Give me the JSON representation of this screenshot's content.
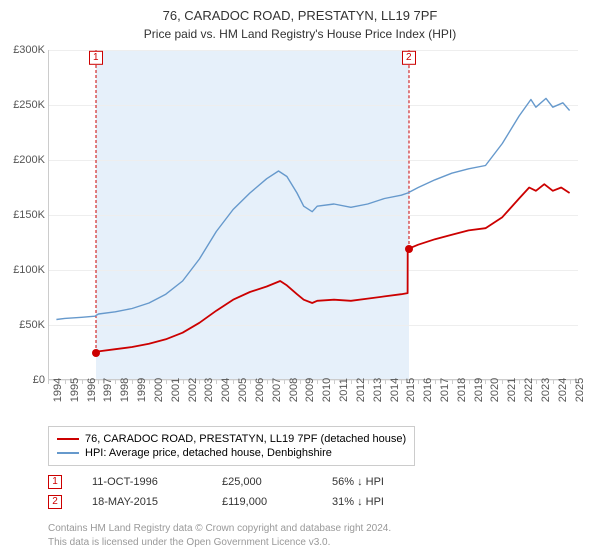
{
  "title": "76, CARADOC ROAD, PRESTATYN, LL19 7PF",
  "subtitle": "Price paid vs. HM Land Registry's House Price Index (HPI)",
  "chart": {
    "type": "line",
    "background_color": "#ffffff",
    "plot_band_color": "#e6f0fa",
    "grid_color": "#eeeeee",
    "axis_color": "#cccccc",
    "x_min": 1994,
    "x_max": 2025.5,
    "y_min": 0,
    "y_max": 300000,
    "y_ticks": [
      0,
      50000,
      100000,
      150000,
      200000,
      250000,
      300000
    ],
    "y_tick_labels": [
      "£0",
      "£50K",
      "£100K",
      "£150K",
      "£200K",
      "£250K",
      "£300K"
    ],
    "x_ticks": [
      1994,
      1995,
      1996,
      1997,
      1998,
      1999,
      2000,
      2001,
      2002,
      2003,
      2004,
      2005,
      2006,
      2007,
      2008,
      2009,
      2010,
      2011,
      2012,
      2013,
      2014,
      2015,
      2016,
      2017,
      2018,
      2019,
      2020,
      2021,
      2022,
      2023,
      2024,
      2025
    ],
    "plot_band": {
      "from": 1996.78,
      "to": 2015.38
    },
    "series": [
      {
        "name": "property",
        "label": "76, CARADOC ROAD, PRESTATYN, LL19 7PF (detached house)",
        "color": "#cc0000",
        "line_width": 1.8,
        "data": [
          [
            1996.78,
            25000
          ],
          [
            1997,
            26000
          ],
          [
            1998,
            28000
          ],
          [
            1999,
            30000
          ],
          [
            2000,
            33000
          ],
          [
            2001,
            37000
          ],
          [
            2002,
            43000
          ],
          [
            2003,
            52000
          ],
          [
            2004,
            63000
          ],
          [
            2005,
            73000
          ],
          [
            2006,
            80000
          ],
          [
            2007,
            85000
          ],
          [
            2007.8,
            90000
          ],
          [
            2008.2,
            86000
          ],
          [
            2008.8,
            78000
          ],
          [
            2009.2,
            73000
          ],
          [
            2009.7,
            70000
          ],
          [
            2010,
            72000
          ],
          [
            2011,
            73000
          ],
          [
            2012,
            72000
          ],
          [
            2013,
            74000
          ],
          [
            2014,
            76000
          ],
          [
            2015,
            78000
          ],
          [
            2015.37,
            79000
          ],
          [
            2015.38,
            119000
          ],
          [
            2016,
            123000
          ],
          [
            2017,
            128000
          ],
          [
            2018,
            132000
          ],
          [
            2019,
            136000
          ],
          [
            2020,
            138000
          ],
          [
            2021,
            148000
          ],
          [
            2022,
            165000
          ],
          [
            2022.6,
            175000
          ],
          [
            2023,
            172000
          ],
          [
            2023.5,
            178000
          ],
          [
            2024,
            172000
          ],
          [
            2024.5,
            175000
          ],
          [
            2025,
            170000
          ]
        ]
      },
      {
        "name": "hpi",
        "label": "HPI: Average price, detached house, Denbighshire",
        "color": "#6699cc",
        "line_width": 1.4,
        "data": [
          [
            1994.5,
            55000
          ],
          [
            1995,
            56000
          ],
          [
            1996,
            57000
          ],
          [
            1996.78,
            58000
          ],
          [
            1997,
            60000
          ],
          [
            1998,
            62000
          ],
          [
            1999,
            65000
          ],
          [
            2000,
            70000
          ],
          [
            2001,
            78000
          ],
          [
            2002,
            90000
          ],
          [
            2003,
            110000
          ],
          [
            2004,
            135000
          ],
          [
            2005,
            155000
          ],
          [
            2006,
            170000
          ],
          [
            2007,
            183000
          ],
          [
            2007.7,
            190000
          ],
          [
            2008.2,
            185000
          ],
          [
            2008.8,
            170000
          ],
          [
            2009.2,
            158000
          ],
          [
            2009.7,
            153000
          ],
          [
            2010,
            158000
          ],
          [
            2011,
            160000
          ],
          [
            2012,
            157000
          ],
          [
            2013,
            160000
          ],
          [
            2014,
            165000
          ],
          [
            2015,
            168000
          ],
          [
            2015.38,
            170000
          ],
          [
            2016,
            175000
          ],
          [
            2017,
            182000
          ],
          [
            2018,
            188000
          ],
          [
            2019,
            192000
          ],
          [
            2020,
            195000
          ],
          [
            2021,
            215000
          ],
          [
            2022,
            240000
          ],
          [
            2022.7,
            255000
          ],
          [
            2023,
            248000
          ],
          [
            2023.6,
            256000
          ],
          [
            2024,
            248000
          ],
          [
            2024.6,
            252000
          ],
          [
            2025,
            245000
          ]
        ]
      }
    ],
    "markers": [
      {
        "n": "1",
        "x": 1996.78,
        "y": 25000,
        "color": "#cc0000"
      },
      {
        "n": "2",
        "x": 2015.38,
        "y": 119000,
        "color": "#cc0000"
      }
    ]
  },
  "legend": {
    "items": [
      {
        "color": "#cc0000",
        "label": "76, CARADOC ROAD, PRESTATYN, LL19 7PF (detached house)"
      },
      {
        "color": "#6699cc",
        "label": "HPI: Average price, detached house, Denbighshire"
      }
    ]
  },
  "sales": [
    {
      "n": "1",
      "color": "#cc0000",
      "date": "11-OCT-1996",
      "price": "£25,000",
      "delta": "56% ↓ HPI"
    },
    {
      "n": "2",
      "color": "#cc0000",
      "date": "18-MAY-2015",
      "price": "£119,000",
      "delta": "31% ↓ HPI"
    }
  ],
  "attribution": {
    "line1": "Contains HM Land Registry data © Crown copyright and database right 2024.",
    "line2": "This data is licensed under the Open Government Licence v3.0."
  }
}
